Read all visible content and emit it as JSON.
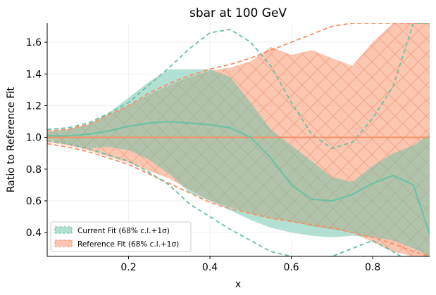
{
  "chart_data": {
    "type": "area",
    "title": "sbar at 100 GeV",
    "xlabel": "x",
    "ylabel": "Ratio to Reference Fit",
    "xlim": [
      0.0,
      0.94
    ],
    "ylim": [
      0.25,
      1.72
    ],
    "xticks": [
      0.2,
      0.4,
      0.6,
      0.8
    ],
    "xtick_labels": [
      "0.2",
      "0.4",
      "0.6",
      "0.8"
    ],
    "yticks": [
      0.4,
      0.6,
      0.8,
      1.0,
      1.2,
      1.4,
      1.6
    ],
    "ytick_labels": [
      "0.4",
      "0.6",
      "0.8",
      "1.0",
      "1.2",
      "1.4",
      "1.6"
    ],
    "grid": true,
    "legend_position": "lower-left",
    "colors": {
      "current": "#66c2a5",
      "reference": "#fc8d62",
      "reference_band": "#fc8d62",
      "current_band": "#66c2a5"
    },
    "series": [
      {
        "name": "Current Fit (68% c.l.+1σ)",
        "x": [
          0.0,
          0.05,
          0.1,
          0.15,
          0.2,
          0.25,
          0.3,
          0.35,
          0.4,
          0.45,
          0.5,
          0.55,
          0.6,
          0.65,
          0.7,
          0.75,
          0.8,
          0.85,
          0.9,
          0.94
        ],
        "central": [
          1.01,
          1.01,
          1.02,
          1.04,
          1.07,
          1.09,
          1.1,
          1.09,
          1.08,
          1.06,
          1.0,
          0.87,
          0.7,
          0.61,
          0.6,
          0.64,
          0.71,
          0.76,
          0.7,
          0.39
        ],
        "upper": [
          1.04,
          1.05,
          1.08,
          1.15,
          1.25,
          1.35,
          1.43,
          1.43,
          1.43,
          1.38,
          1.22,
          1.05,
          0.95,
          0.85,
          0.75,
          0.72,
          0.82,
          0.9,
          0.95,
          1.02
        ],
        "lower": [
          0.99,
          0.96,
          0.93,
          0.94,
          0.92,
          0.86,
          0.77,
          0.65,
          0.6,
          0.54,
          0.48,
          0.43,
          0.4,
          0.38,
          0.37,
          0.38,
          0.37,
          0.35,
          0.3,
          0.25
        ],
        "outer_upper": [
          1.05,
          1.06,
          1.09,
          1.15,
          1.22,
          1.33,
          1.44,
          1.56,
          1.66,
          1.68,
          1.6,
          1.45,
          1.22,
          1.02,
          0.93,
          0.97,
          1.12,
          1.32,
          1.72,
          1.72
        ],
        "outer_lower": [
          0.98,
          0.96,
          0.93,
          0.89,
          0.85,
          0.78,
          0.7,
          0.58,
          0.5,
          0.42,
          0.35,
          0.28,
          0.25,
          0.24,
          0.25,
          0.3,
          0.35,
          0.28,
          0.2,
          0.15
        ]
      },
      {
        "name": "Reference Fit (68% c.l.+1σ)",
        "x": [
          0.0,
          0.05,
          0.1,
          0.15,
          0.2,
          0.25,
          0.3,
          0.35,
          0.4,
          0.45,
          0.5,
          0.55,
          0.6,
          0.65,
          0.7,
          0.75,
          0.8,
          0.85,
          0.9,
          0.94
        ],
        "central": [
          1.0,
          1.0,
          1.0,
          1.0,
          1.0,
          1.0,
          1.0,
          1.0,
          1.0,
          1.0,
          1.0,
          1.0,
          1.0,
          1.0,
          1.0,
          1.0,
          1.0,
          1.0,
          1.0,
          1.0
        ],
        "upper": [
          1.03,
          1.05,
          1.08,
          1.14,
          1.2,
          1.27,
          1.33,
          1.38,
          1.42,
          1.44,
          1.48,
          1.57,
          1.52,
          1.55,
          1.5,
          1.45,
          1.6,
          1.72,
          1.72,
          1.72
        ],
        "lower": [
          0.97,
          0.95,
          0.92,
          0.88,
          0.84,
          0.79,
          0.74,
          0.67,
          0.6,
          0.56,
          0.52,
          0.49,
          0.47,
          0.44,
          0.42,
          0.4,
          0.34,
          0.28,
          0.25,
          0.25
        ],
        "outer_upper": [
          1.04,
          1.05,
          1.08,
          1.14,
          1.2,
          1.28,
          1.34,
          1.39,
          1.43,
          1.46,
          1.5,
          1.55,
          1.6,
          1.65,
          1.7,
          1.72,
          1.72,
          1.72,
          1.72,
          1.72
        ],
        "outer_lower": [
          0.96,
          0.94,
          0.91,
          0.87,
          0.83,
          0.77,
          0.71,
          0.65,
          0.59,
          0.55,
          0.52,
          0.49,
          0.47,
          0.45,
          0.43,
          0.4,
          0.37,
          0.33,
          0.28,
          0.25
        ]
      }
    ]
  }
}
